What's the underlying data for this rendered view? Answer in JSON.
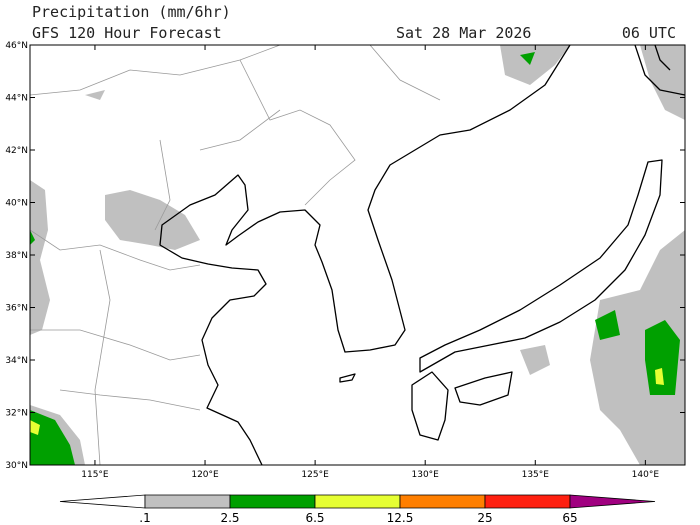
{
  "header": {
    "title": "Precipitation (mm/6hr)",
    "subtitle": "GFS 120 Hour Forecast",
    "date": "Sat 28 Mar 2026",
    "time": "06 UTC"
  },
  "map": {
    "lonlim": [
      112.05,
      141.8
    ],
    "latlim": [
      30,
      46
    ],
    "lat_ticks": [
      {
        "value": 46,
        "label": "46°N"
      },
      {
        "value": 44,
        "label": "44°N"
      },
      {
        "value": 42,
        "label": "42°N"
      },
      {
        "value": 40,
        "label": "40°N"
      },
      {
        "value": 38,
        "label": "38°N"
      },
      {
        "value": 36,
        "label": "36°N"
      },
      {
        "value": 34,
        "label": "34°N"
      },
      {
        "value": 32,
        "label": "32°N"
      },
      {
        "value": 30,
        "label": "30°N"
      }
    ],
    "lon_ticks": [
      {
        "value": 115,
        "label": "115°E"
      },
      {
        "value": 120,
        "label": "120°E"
      },
      {
        "value": 125,
        "label": "125°E"
      },
      {
        "value": 130,
        "label": "130°E"
      },
      {
        "value": 135,
        "label": "135°E"
      },
      {
        "value": 140,
        "label": "140°E"
      }
    ]
  },
  "colorbar": {
    "labels": [
      ".1",
      "2.5",
      "6.5",
      "12.5",
      "25",
      "65"
    ],
    "colors": [
      "#ffffff",
      "#c0c0c0",
      "#00a000",
      "#e6ff33",
      "#ff7f00",
      "#ff2010",
      "#a00080"
    ]
  }
}
